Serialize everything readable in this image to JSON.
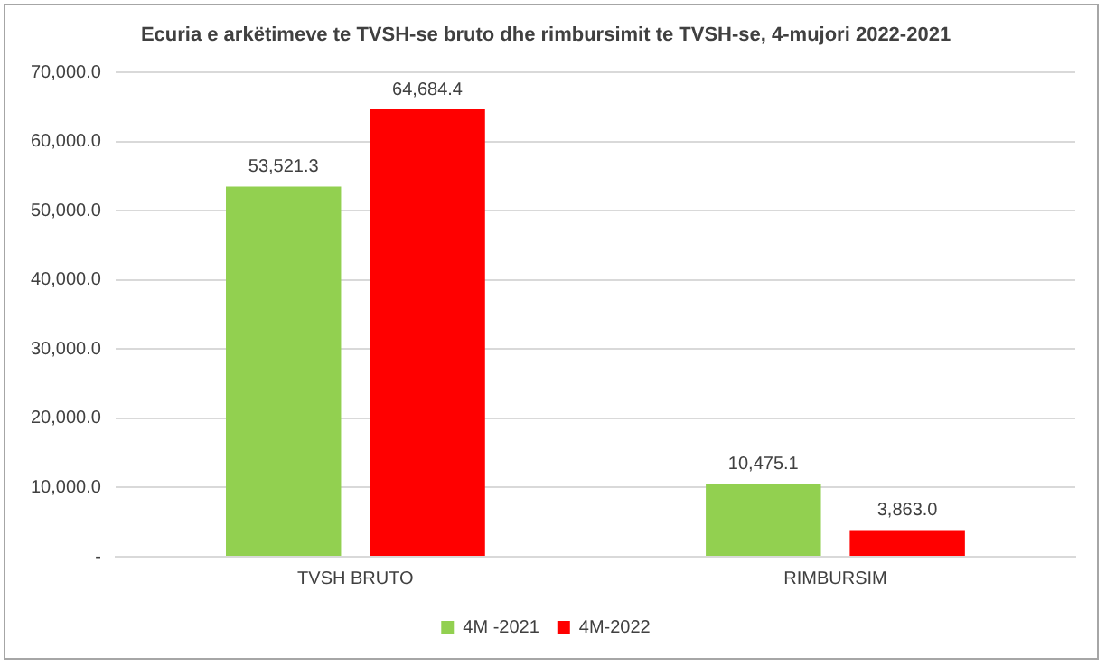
{
  "chart_data": {
    "type": "bar",
    "title": "Ecuria e arkëtimeve te TVSH-se bruto dhe rimbursimit te TVSH-se, 4-mujori 2022-2021",
    "categories": [
      "TVSH BRUTO",
      "RIMBURSIM"
    ],
    "series": [
      {
        "name": "4M -2021",
        "color": "#92d050",
        "values": [
          53521.3,
          10475.1
        ],
        "value_labels": [
          "53,521.3",
          "10,475.1"
        ]
      },
      {
        "name": "4M-2022",
        "color": "#ff0000",
        "values": [
          64684.4,
          3863.0
        ],
        "value_labels": [
          "64,684.4",
          "3,863.0"
        ]
      }
    ],
    "ylim": [
      0,
      70000
    ],
    "yticks": [
      {
        "value": 0,
        "label": "-"
      },
      {
        "value": 10000,
        "label": "10,000.0"
      },
      {
        "value": 20000,
        "label": "20,000.0"
      },
      {
        "value": 30000,
        "label": "30,000.0"
      },
      {
        "value": 40000,
        "label": "40,000.0"
      },
      {
        "value": 50000,
        "label": "50,000.0"
      },
      {
        "value": 60000,
        "label": "60,000.0"
      },
      {
        "value": 70000,
        "label": "70,000.0"
      }
    ],
    "grid": "y",
    "legend": "bottom"
  }
}
